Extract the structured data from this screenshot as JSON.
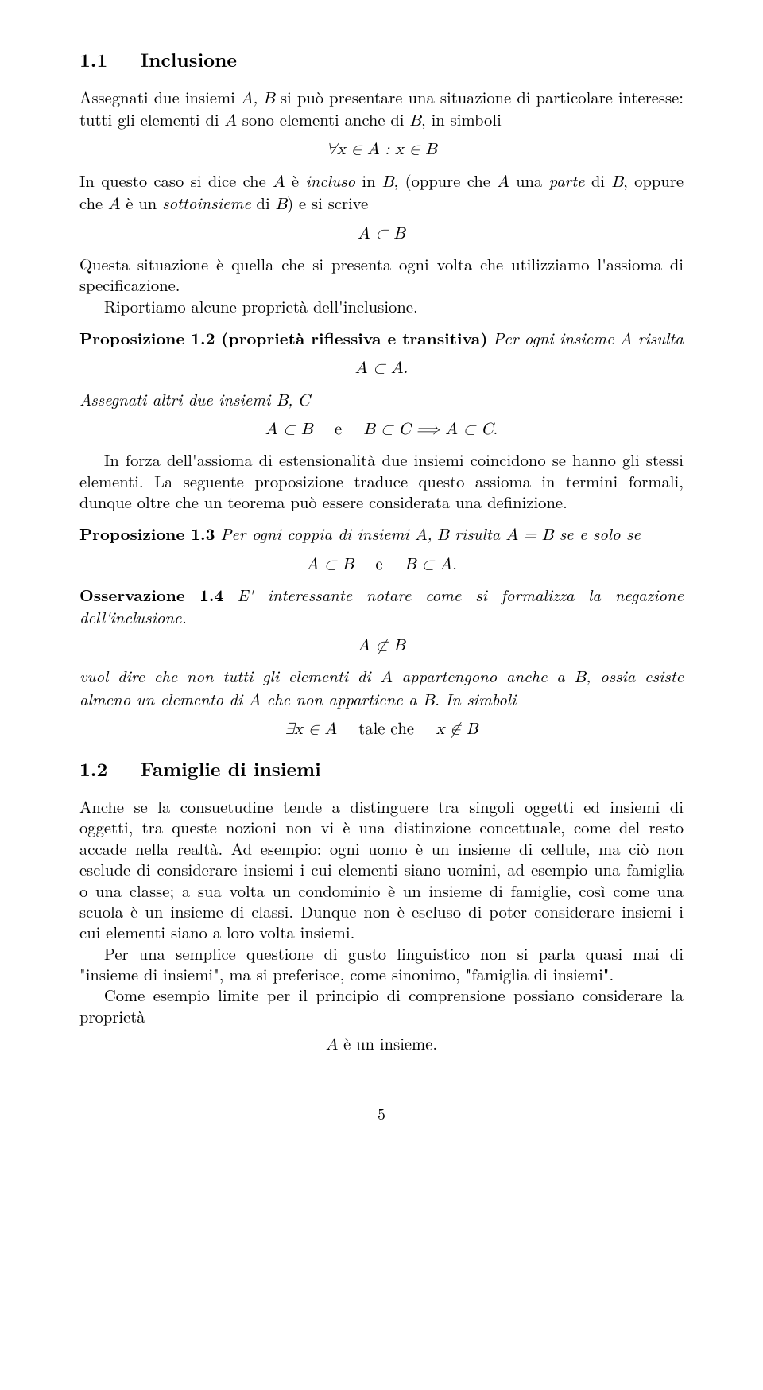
{
  "section": {
    "number": "1.1",
    "title": "Inclusione"
  },
  "p1a": "Assegnati due insiemi ",
  "p1b": " si può presentare una situazione di particolare interesse: tutti gli elementi di ",
  "p1c": " sono elementi anche di ",
  "p1d": ", in simboli",
  "m1": "∀x ∈ A : x ∈ B",
  "p2a": "In questo caso si dice che ",
  "p2b": " è ",
  "p2c_it": "incluso",
  "p2d": " in ",
  "p2e": ", (oppure che ",
  "p2f": " una ",
  "p2g_it": "parte",
  "p2h": " di ",
  "p2i": ", oppure che ",
  "p2j": " è un ",
  "p2k_it": "sottoinsieme",
  "p2l": " di ",
  "p2m": ") e si scrive",
  "m2": "A ⊂ B",
  "p3": "Questa situazione è quella che si presenta ogni volta che utilizziamo l'assioma di specificazione.",
  "p4": "Riportiamo alcune proprietà dell'inclusione.",
  "prop12_label": "Proposizione 1.2 (proprietà riflessiva e transitiva)",
  "prop12_a": "Per ogni insieme ",
  "prop12_b": " risulta",
  "m3": "A ⊂ A.",
  "prop12_c": "Assegnati altri due insiemi ",
  "m4": "A ⊂ B    e    B ⊂ C  ⟹  A ⊂ C.",
  "p5": "In forza dell'assioma di estensionalità due insiemi coincidono se hanno gli stessi elementi. La seguente proposizione traduce questo assioma in termini formali, dunque oltre che un teorema può essere considerata una definizione.",
  "prop13_label": "Proposizione 1.3",
  "prop13_a": "Per ogni coppia di insiemi ",
  "prop13_b": " risulta ",
  "prop13_c": " se e solo se",
  "m5": "A ⊂ B    e    B ⊂ A.",
  "obs14_label": "Osservazione 1.4",
  "obs14_a": "E' interessante notare come si formalizza la negazione dell'inclusione.",
  "m6": "A ⊄ B",
  "obs14_b1": "vuol dire che non tutti gli elementi di ",
  "obs14_b2": " appartengono anche a ",
  "obs14_b3": ", ossia esiste almeno un elemento di ",
  "obs14_b4": " che non appartiene a ",
  "obs14_b5": ". In simboli",
  "m7": "∃x ∈ A    tale che    x ∉ B",
  "section2": {
    "number": "1.2",
    "title": "Famiglie di insiemi"
  },
  "p6": "Anche se la consuetudine tende a distinguere tra singoli oggetti ed insiemi di oggetti, tra queste nozioni non vi è una distinzione concettuale, come del resto accade nella realtà. Ad esempio: ogni uomo è un insieme di cellule, ma ciò non esclude di considerare insiemi i cui elementi siano uomini, ad esempio una famiglia o una classe; a sua volta un condominio è un insieme di famiglie, così come una scuola è un insieme di classi. Dunque non è escluso di poter considerare insiemi i cui elementi siano a loro volta insiemi.",
  "p7": "Per una semplice questione di gusto linguistico non si parla quasi mai di \"insieme di insiemi\", ma si preferisce, come sinonimo, \"famiglia di insiemi\".",
  "p8": "Come esempio limite per il principio di comprensione possiano considerare la proprietà",
  "m8": "A è un insieme.",
  "pagenum": "5",
  "sym": {
    "A": "A",
    "B": "B",
    "C": "C",
    "AB": "A, B",
    "BC": "B, C",
    "ABeq": "A = B"
  }
}
